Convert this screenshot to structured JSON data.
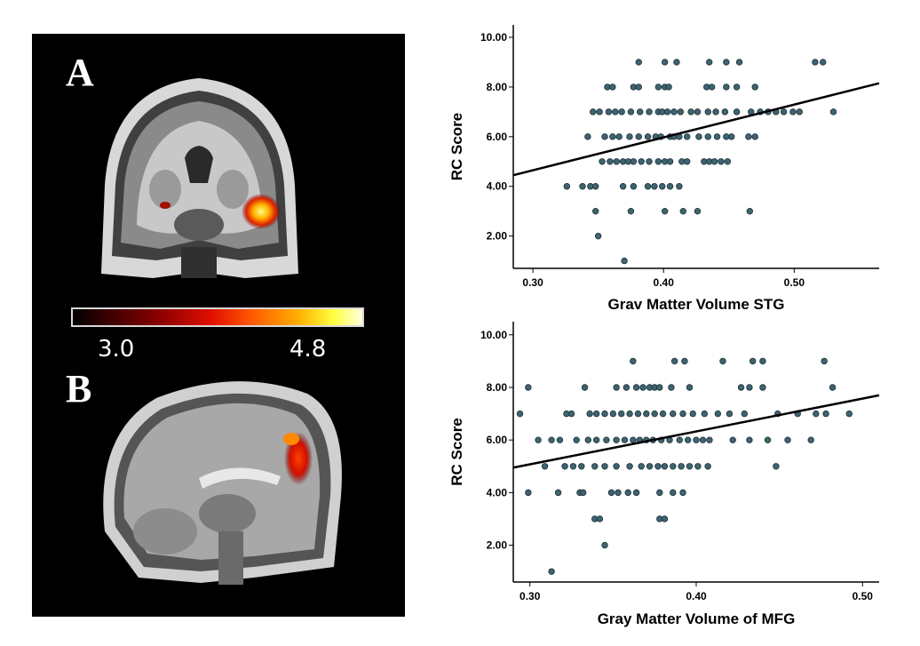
{
  "panels": {
    "a_letter": "A",
    "b_letter": "B",
    "colorbar": {
      "min_label": "3.0",
      "max_label": "4.8",
      "colors": [
        "#000000",
        "#8b0000",
        "#e01000",
        "#ff5a00",
        "#ffb000",
        "#ffff40",
        "#ffffe0"
      ]
    }
  },
  "chart_data": [
    {
      "type": "scatter",
      "xlabel": "Grav Matter Volume STG",
      "ylabel": "RC Score",
      "xlim": [
        0.285,
        0.565
      ],
      "ylim": [
        0.7,
        10.5
      ],
      "xticks": [
        0.3,
        0.4,
        0.5
      ],
      "xtick_labels": [
        "0.30",
        "0.40",
        "0.50"
      ],
      "yticks": [
        2,
        4,
        6,
        8,
        10
      ],
      "ytick_labels": [
        "2.00",
        "4.00",
        "6.00",
        "8.00",
        "10.00"
      ],
      "marker_color": "#3e6470",
      "fit_line": {
        "x": [
          0.285,
          0.565
        ],
        "y": [
          4.45,
          8.15
        ]
      },
      "points": [
        [
          0.381,
          9
        ],
        [
          0.401,
          9
        ],
        [
          0.41,
          9
        ],
        [
          0.435,
          9
        ],
        [
          0.448,
          9
        ],
        [
          0.458,
          9
        ],
        [
          0.516,
          9
        ],
        [
          0.522,
          9
        ],
        [
          0.357,
          8
        ],
        [
          0.361,
          8
        ],
        [
          0.377,
          8
        ],
        [
          0.381,
          8
        ],
        [
          0.396,
          8
        ],
        [
          0.401,
          8
        ],
        [
          0.404,
          8
        ],
        [
          0.433,
          8
        ],
        [
          0.437,
          8
        ],
        [
          0.448,
          8
        ],
        [
          0.456,
          8
        ],
        [
          0.47,
          8
        ],
        [
          0.346,
          7
        ],
        [
          0.351,
          7
        ],
        [
          0.358,
          7
        ],
        [
          0.363,
          7
        ],
        [
          0.368,
          7
        ],
        [
          0.375,
          7
        ],
        [
          0.382,
          7
        ],
        [
          0.389,
          7
        ],
        [
          0.396,
          7
        ],
        [
          0.399,
          7
        ],
        [
          0.403,
          7
        ],
        [
          0.408,
          7
        ],
        [
          0.413,
          7
        ],
        [
          0.421,
          7
        ],
        [
          0.426,
          7
        ],
        [
          0.434,
          7
        ],
        [
          0.44,
          7
        ],
        [
          0.447,
          7
        ],
        [
          0.456,
          7
        ],
        [
          0.467,
          7
        ],
        [
          0.474,
          7
        ],
        [
          0.48,
          7
        ],
        [
          0.486,
          7
        ],
        [
          0.492,
          7
        ],
        [
          0.499,
          7
        ],
        [
          0.504,
          7
        ],
        [
          0.53,
          7
        ],
        [
          0.342,
          6
        ],
        [
          0.355,
          6
        ],
        [
          0.361,
          6
        ],
        [
          0.366,
          6
        ],
        [
          0.374,
          6
        ],
        [
          0.381,
          6
        ],
        [
          0.388,
          6
        ],
        [
          0.394,
          6
        ],
        [
          0.398,
          6
        ],
        [
          0.405,
          6
        ],
        [
          0.408,
          6
        ],
        [
          0.412,
          6
        ],
        [
          0.418,
          6
        ],
        [
          0.427,
          6
        ],
        [
          0.434,
          6
        ],
        [
          0.441,
          6
        ],
        [
          0.448,
          6
        ],
        [
          0.452,
          6
        ],
        [
          0.465,
          6
        ],
        [
          0.47,
          6
        ],
        [
          0.353,
          5
        ],
        [
          0.359,
          5
        ],
        [
          0.364,
          5
        ],
        [
          0.369,
          5
        ],
        [
          0.373,
          5
        ],
        [
          0.377,
          5
        ],
        [
          0.383,
          5
        ],
        [
          0.389,
          5
        ],
        [
          0.396,
          5
        ],
        [
          0.401,
          5
        ],
        [
          0.405,
          5
        ],
        [
          0.414,
          5
        ],
        [
          0.418,
          5
        ],
        [
          0.431,
          5
        ],
        [
          0.435,
          5
        ],
        [
          0.439,
          5
        ],
        [
          0.444,
          5
        ],
        [
          0.449,
          5
        ],
        [
          0.326,
          4
        ],
        [
          0.338,
          4
        ],
        [
          0.344,
          4
        ],
        [
          0.348,
          4
        ],
        [
          0.369,
          4
        ],
        [
          0.377,
          4
        ],
        [
          0.388,
          4
        ],
        [
          0.393,
          4
        ],
        [
          0.399,
          4
        ],
        [
          0.405,
          4
        ],
        [
          0.412,
          4
        ],
        [
          0.348,
          3
        ],
        [
          0.375,
          3
        ],
        [
          0.401,
          3
        ],
        [
          0.415,
          3
        ],
        [
          0.426,
          3
        ],
        [
          0.466,
          3
        ],
        [
          0.35,
          2
        ],
        [
          0.37,
          1
        ]
      ]
    },
    {
      "type": "scatter",
      "xlabel": "Gray Matter Volume of MFG",
      "ylabel": "RC Score",
      "xlim": [
        0.29,
        0.51
      ],
      "ylim": [
        0.6,
        10.5
      ],
      "xticks": [
        0.3,
        0.4,
        0.5
      ],
      "xtick_labels": [
        "0.30",
        "0.40",
        "0.50"
      ],
      "yticks": [
        2,
        4,
        6,
        8,
        10
      ],
      "ytick_labels": [
        "2.00",
        "4.00",
        "6.00",
        "8.00",
        "10.00"
      ],
      "marker_color": "#3e6470",
      "fit_line": {
        "x": [
          0.29,
          0.51
        ],
        "y": [
          4.95,
          7.7
        ]
      },
      "points": [
        [
          0.362,
          9
        ],
        [
          0.387,
          9
        ],
        [
          0.393,
          9
        ],
        [
          0.416,
          9
        ],
        [
          0.434,
          9
        ],
        [
          0.44,
          9
        ],
        [
          0.477,
          9
        ],
        [
          0.299,
          8
        ],
        [
          0.333,
          8
        ],
        [
          0.352,
          8
        ],
        [
          0.358,
          8
        ],
        [
          0.364,
          8
        ],
        [
          0.368,
          8
        ],
        [
          0.372,
          8
        ],
        [
          0.375,
          8
        ],
        [
          0.378,
          8
        ],
        [
          0.385,
          8
        ],
        [
          0.396,
          8
        ],
        [
          0.427,
          8
        ],
        [
          0.432,
          8
        ],
        [
          0.44,
          8
        ],
        [
          0.482,
          8
        ],
        [
          0.294,
          7
        ],
        [
          0.322,
          7
        ],
        [
          0.325,
          7
        ],
        [
          0.336,
          7
        ],
        [
          0.34,
          7
        ],
        [
          0.345,
          7
        ],
        [
          0.35,
          7
        ],
        [
          0.355,
          7
        ],
        [
          0.36,
          7
        ],
        [
          0.365,
          7
        ],
        [
          0.37,
          7
        ],
        [
          0.375,
          7
        ],
        [
          0.38,
          7
        ],
        [
          0.386,
          7
        ],
        [
          0.392,
          7
        ],
        [
          0.398,
          7
        ],
        [
          0.405,
          7
        ],
        [
          0.413,
          7
        ],
        [
          0.42,
          7
        ],
        [
          0.429,
          7
        ],
        [
          0.449,
          7
        ],
        [
          0.461,
          7
        ],
        [
          0.472,
          7
        ],
        [
          0.478,
          7
        ],
        [
          0.492,
          7
        ],
        [
          0.305,
          6
        ],
        [
          0.313,
          6
        ],
        [
          0.318,
          6
        ],
        [
          0.328,
          6
        ],
        [
          0.335,
          6
        ],
        [
          0.34,
          6
        ],
        [
          0.346,
          6
        ],
        [
          0.352,
          6
        ],
        [
          0.357,
          6
        ],
        [
          0.362,
          6
        ],
        [
          0.366,
          6
        ],
        [
          0.37,
          6
        ],
        [
          0.374,
          6
        ],
        [
          0.379,
          6
        ],
        [
          0.384,
          6
        ],
        [
          0.39,
          6
        ],
        [
          0.395,
          6
        ],
        [
          0.4,
          6
        ],
        [
          0.404,
          6
        ],
        [
          0.408,
          6
        ],
        [
          0.422,
          6
        ],
        [
          0.432,
          6
        ],
        [
          0.443,
          6
        ],
        [
          0.455,
          6
        ],
        [
          0.469,
          6
        ],
        [
          0.309,
          5
        ],
        [
          0.321,
          5
        ],
        [
          0.326,
          5
        ],
        [
          0.331,
          5
        ],
        [
          0.339,
          5
        ],
        [
          0.345,
          5
        ],
        [
          0.352,
          5
        ],
        [
          0.36,
          5
        ],
        [
          0.367,
          5
        ],
        [
          0.372,
          5
        ],
        [
          0.377,
          5
        ],
        [
          0.381,
          5
        ],
        [
          0.386,
          5
        ],
        [
          0.391,
          5
        ],
        [
          0.396,
          5
        ],
        [
          0.401,
          5
        ],
        [
          0.407,
          5
        ],
        [
          0.448,
          5
        ],
        [
          0.299,
          4
        ],
        [
          0.317,
          4
        ],
        [
          0.33,
          4
        ],
        [
          0.332,
          4
        ],
        [
          0.349,
          4
        ],
        [
          0.353,
          4
        ],
        [
          0.359,
          4
        ],
        [
          0.364,
          4
        ],
        [
          0.378,
          4
        ],
        [
          0.386,
          4
        ],
        [
          0.392,
          4
        ],
        [
          0.339,
          3
        ],
        [
          0.342,
          3
        ],
        [
          0.378,
          3
        ],
        [
          0.381,
          3
        ],
        [
          0.345,
          2
        ],
        [
          0.313,
          1
        ]
      ]
    }
  ]
}
